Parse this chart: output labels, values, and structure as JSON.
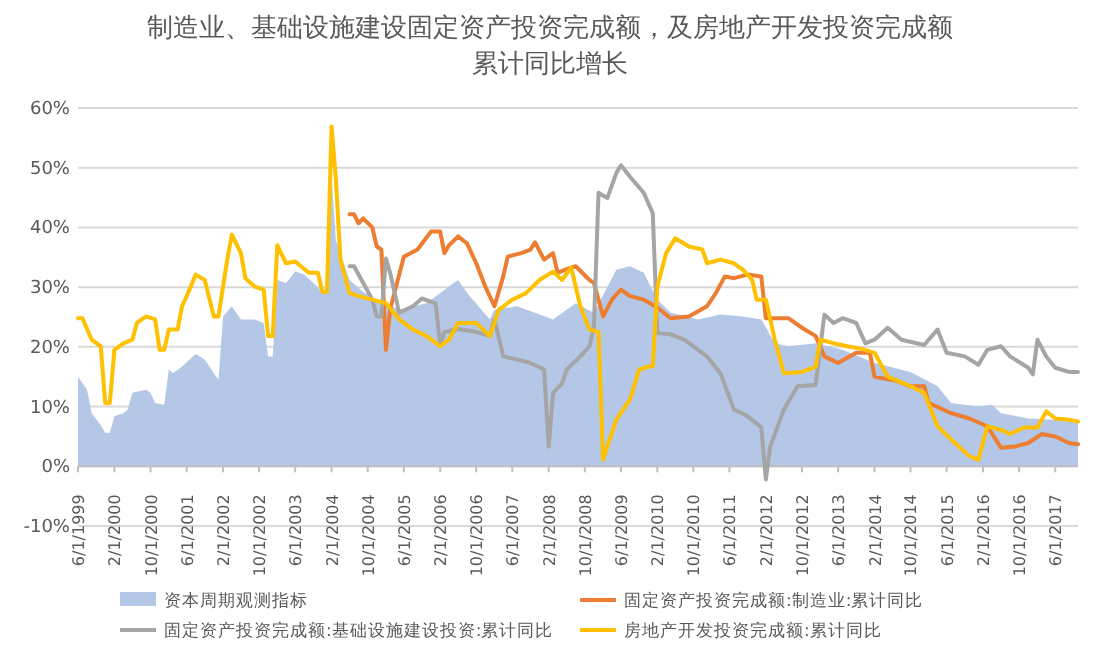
{
  "chart_data": {
    "type": "line",
    "title": "制造业、基础设施建设固定资产投资完成额，及房地产开发投资完成额",
    "subtitle": "累计同比增长",
    "xlim": [
      "1999-06",
      "2017-11"
    ],
    "xticks": [
      {
        "value": "1999-06-01",
        "label": "6/1/1999"
      },
      {
        "value": "2000-02-01",
        "label": "2/1/2000"
      },
      {
        "value": "2000-10-01",
        "label": "10/1/2000"
      },
      {
        "value": "2001-06-01",
        "label": "6/1/2001"
      },
      {
        "value": "2002-02-01",
        "label": "2/1/2002"
      },
      {
        "value": "2002-10-01",
        "label": "10/1/2002"
      },
      {
        "value": "2003-06-01",
        "label": "6/1/2003"
      },
      {
        "value": "2004-02-01",
        "label": "2/1/2004"
      },
      {
        "value": "2004-10-01",
        "label": "10/1/2004"
      },
      {
        "value": "2005-06-01",
        "label": "6/1/2005"
      },
      {
        "value": "2006-02-01",
        "label": "2/1/2006"
      },
      {
        "value": "2006-10-01",
        "label": "10/1/2006"
      },
      {
        "value": "2007-06-01",
        "label": "6/1/2007"
      },
      {
        "value": "2008-02-01",
        "label": "2/1/2008"
      },
      {
        "value": "2008-10-01",
        "label": "10/1/2008"
      },
      {
        "value": "2009-06-01",
        "label": "6/1/2009"
      },
      {
        "value": "2010-02-01",
        "label": "2/1/2010"
      },
      {
        "value": "2010-10-01",
        "label": "10/1/2010"
      },
      {
        "value": "2011-06-01",
        "label": "6/1/2011"
      },
      {
        "value": "2012-02-01",
        "label": "2/1/2012"
      },
      {
        "value": "2012-10-01",
        "label": "10/1/2012"
      },
      {
        "value": "2013-06-01",
        "label": "6/1/2013"
      },
      {
        "value": "2014-02-01",
        "label": "2/1/2014"
      },
      {
        "value": "2014-10-01",
        "label": "10/1/2014"
      },
      {
        "value": "2015-06-01",
        "label": "6/1/2015"
      },
      {
        "value": "2016-02-01",
        "label": "2/1/2016"
      },
      {
        "value": "2016-10-01",
        "label": "10/1/2016"
      },
      {
        "value": "2017-06-01",
        "label": "6/1/2017"
      }
    ],
    "ylim": [
      -10,
      60
    ],
    "yticks": [
      {
        "value": -10,
        "label": "-10%"
      },
      {
        "value": 0,
        "label": "0%"
      },
      {
        "value": 10,
        "label": "10%"
      },
      {
        "value": 20,
        "label": "20%"
      },
      {
        "value": 30,
        "label": "30%"
      },
      {
        "value": 40,
        "label": "40%"
      },
      {
        "value": 50,
        "label": "50%"
      },
      {
        "value": 60,
        "label": "60%"
      }
    ],
    "grid": "y",
    "legend": "bottom",
    "series": [
      {
        "name": "资本周期观测指标",
        "type": "area",
        "color": "#b4c7e7",
        "x": [
          "1999-06",
          "1999-08",
          "1999-09",
          "1999-11",
          "1999-12",
          "2000-01",
          "2000-02",
          "2000-04",
          "2000-05",
          "2000-06",
          "2000-09",
          "2000-10",
          "2000-11",
          "2001-01",
          "2001-02",
          "2001-03",
          "2001-05",
          "2001-08",
          "2001-10",
          "2001-12",
          "2002-01",
          "2002-02",
          "2002-04",
          "2002-06",
          "2002-09",
          "2002-11",
          "2002-12",
          "2003-01",
          "2003-02",
          "2003-04",
          "2003-06",
          "2003-08",
          "2003-10",
          "2003-12",
          "2004-01",
          "2004-02",
          "2004-03",
          "2004-06",
          "2004-09",
          "2004-12",
          "2005-05",
          "2005-11",
          "2006-04",
          "2006-06",
          "2006-08",
          "2007-01",
          "2007-02",
          "2007-07",
          "2007-11",
          "2008-03",
          "2008-08",
          "2008-12",
          "2009-05",
          "2009-08",
          "2009-11",
          "2010-02",
          "2010-05",
          "2010-11",
          "2011-04",
          "2011-09",
          "2012-01",
          "2012-04",
          "2012-07",
          "2013-01",
          "2013-07",
          "2014-02",
          "2014-10",
          "2015-04",
          "2015-07",
          "2016-01",
          "2016-04",
          "2016-06",
          "2016-12",
          "2017-06",
          "2017-11"
        ],
        "values": [
          15,
          12.8,
          8.9,
          6.9,
          5.6,
          5.6,
          8.4,
          8.9,
          9.5,
          12.3,
          12.8,
          12.3,
          10.6,
          10.3,
          16.2,
          15.6,
          16.7,
          18.8,
          17.9,
          15.6,
          14.5,
          25.1,
          26.8,
          24.6,
          24.6,
          24,
          18.4,
          18.4,
          31.2,
          30.7,
          32.6,
          32.1,
          30.7,
          29.2,
          29,
          48.5,
          37.9,
          31.2,
          29.2,
          27.9,
          26.2,
          27.3,
          30.1,
          31.2,
          29,
          24.6,
          26.2,
          26.8,
          25.7,
          24.6,
          27.3,
          25.7,
          32.9,
          33.5,
          32.4,
          27.9,
          25.7,
          24.6,
          25.4,
          25.1,
          24.6,
          20.6,
          20.1,
          20.6,
          19.5,
          17.3,
          15.8,
          13.4,
          10.6,
          10,
          10.3,
          8.9,
          8,
          7.8,
          7.6
        ]
      },
      {
        "name": "固定资产投资完成额:制造业:累计同比",
        "color": "#ed7d31",
        "x": [
          "2004-06",
          "2004-07",
          "2004-08",
          "2004-09",
          "2004-11",
          "2004-12",
          "2005-01",
          "2005-02",
          "2005-03",
          "2005-06",
          "2005-09",
          "2005-12",
          "2006-02",
          "2006-03",
          "2006-04",
          "2006-06",
          "2006-08",
          "2006-10",
          "2006-12",
          "2007-02",
          "2007-04",
          "2007-05",
          "2007-08",
          "2007-10",
          "2007-11",
          "2008-01",
          "2008-03",
          "2008-04",
          "2008-06",
          "2008-08",
          "2008-11",
          "2008-12",
          "2009-02",
          "2009-04",
          "2009-06",
          "2009-08",
          "2009-11",
          "2010-02",
          "2010-05",
          "2010-09",
          "2011-01",
          "2011-03",
          "2011-05",
          "2011-07",
          "2011-10",
          "2012-01",
          "2012-02",
          "2012-07",
          "2012-10",
          "2013-01",
          "2013-03",
          "2013-06",
          "2013-10",
          "2014-01",
          "2014-02",
          "2014-07",
          "2014-10",
          "2015-01",
          "2015-02",
          "2015-07",
          "2015-11",
          "2016-03",
          "2016-06",
          "2016-09",
          "2016-12",
          "2017-03",
          "2017-06",
          "2017-09",
          "2017-11"
        ],
        "values": [
          42.2,
          42.2,
          40.7,
          41.5,
          40,
          36.8,
          36.3,
          19.5,
          26.2,
          35.1,
          36.3,
          39.3,
          39.3,
          35.7,
          37,
          38.5,
          37.3,
          34,
          30.1,
          26.8,
          31.8,
          35.1,
          35.7,
          36.3,
          37.5,
          34.6,
          35.7,
          32.4,
          33,
          33.5,
          31.2,
          30.7,
          25.1,
          27.9,
          29.6,
          28.5,
          27.9,
          26.6,
          24.8,
          25.1,
          26.8,
          29,
          31.8,
          31.5,
          32.1,
          31.8,
          24.8,
          24.8,
          23.2,
          21.8,
          18.4,
          17.3,
          19,
          19,
          15,
          14.3,
          13.4,
          13.4,
          10.6,
          8.9,
          8,
          6.7,
          3.1,
          3.3,
          3.9,
          5.4,
          5,
          3.9,
          3.7
        ]
      },
      {
        "name": "固定资产投资完成额:基础设施建设投资:累计同比",
        "color": "#a5a5a5",
        "x": [
          "2004-06",
          "2004-07",
          "2004-09",
          "2004-11",
          "2004-12",
          "2005-01",
          "2005-02",
          "2005-03",
          "2005-05",
          "2005-08",
          "2005-10",
          "2006-01",
          "2006-02",
          "2006-03",
          "2006-06",
          "2006-10",
          "2007-01",
          "2007-02",
          "2007-04",
          "2007-07",
          "2007-10",
          "2008-01",
          "2008-02",
          "2008-03",
          "2008-05",
          "2008-06",
          "2008-09",
          "2008-11",
          "2008-12",
          "2009-01",
          "2009-03",
          "2009-05",
          "2009-06",
          "2009-08",
          "2009-11",
          "2010-01",
          "2010-02",
          "2010-05",
          "2010-08",
          "2010-11",
          "2011-01",
          "2011-04",
          "2011-07",
          "2011-10",
          "2012-01",
          "2012-02",
          "2012-03",
          "2012-06",
          "2012-09",
          "2013-01",
          "2013-03",
          "2013-05",
          "2013-07",
          "2013-10",
          "2013-12",
          "2014-02",
          "2014-05",
          "2014-08",
          "2015-01",
          "2015-04",
          "2015-06",
          "2015-10",
          "2016-01",
          "2016-03",
          "2016-06",
          "2016-08",
          "2016-12",
          "2017-01",
          "2017-02",
          "2017-04",
          "2017-06",
          "2017-09",
          "2017-11"
        ],
        "values": [
          33.5,
          33.5,
          30.7,
          27.9,
          25.1,
          25.1,
          34.8,
          32.4,
          25.7,
          26.8,
          28.1,
          27.3,
          20.3,
          22.5,
          23,
          22.5,
          21.8,
          24.6,
          18.4,
          17.9,
          17.3,
          16.2,
          3.3,
          12.3,
          13.9,
          16.2,
          18.4,
          20.1,
          23.4,
          45.8,
          44.9,
          49.1,
          50.4,
          48.5,
          45.8,
          42.4,
          22.3,
          22.1,
          21.2,
          19.5,
          18.4,
          15.6,
          9.5,
          8.4,
          6.5,
          -2.2,
          3.3,
          9.5,
          13.4,
          13.6,
          25.4,
          24,
          24.8,
          24,
          20.6,
          21.2,
          23.2,
          21.2,
          20.3,
          22.9,
          19,
          18.4,
          17,
          19.5,
          20.1,
          18.4,
          16.5,
          15.4,
          21.2,
          18.4,
          16.5,
          15.8,
          15.8
        ]
      },
      {
        "name": "房地产开发投资完成额:累计同比",
        "color": "#ffc000",
        "x": [
          "1999-06",
          "1999-07",
          "1999-09",
          "1999-11",
          "1999-12",
          "2000-01",
          "2000-02",
          "2000-04",
          "2000-06",
          "2000-07",
          "2000-09",
          "2000-11",
          "2000-12",
          "2001-01",
          "2001-02",
          "2001-04",
          "2001-05",
          "2001-06",
          "2001-08",
          "2001-10",
          "2001-12",
          "2002-01",
          "2002-03",
          "2002-04",
          "2002-06",
          "2002-07",
          "2002-09",
          "2002-11",
          "2002-12",
          "2003-01",
          "2003-02",
          "2003-04",
          "2003-06",
          "2003-09",
          "2003-11",
          "2003-12",
          "2004-01",
          "2004-02",
          "2004-03",
          "2004-04",
          "2004-06",
          "2004-08",
          "2004-11",
          "2005-02",
          "2005-05",
          "2005-08",
          "2005-11",
          "2006-02",
          "2006-04",
          "2006-06",
          "2006-10",
          "2007-01",
          "2007-03",
          "2007-06",
          "2007-09",
          "2007-12",
          "2008-03",
          "2008-05",
          "2008-07",
          "2008-09",
          "2008-11",
          "2009-01",
          "2009-02",
          "2009-03",
          "2009-05",
          "2009-08",
          "2009-10",
          "2009-12",
          "2010-01",
          "2010-02",
          "2010-04",
          "2010-06",
          "2010-09",
          "2010-12",
          "2011-01",
          "2011-04",
          "2011-07",
          "2011-09",
          "2011-11",
          "2011-12",
          "2012-02",
          "2012-04",
          "2012-06",
          "2012-10",
          "2013-01",
          "2013-02",
          "2013-05",
          "2013-08",
          "2013-11",
          "2014-02",
          "2014-05",
          "2014-10",
          "2015-01",
          "2015-04",
          "2015-07",
          "2015-11",
          "2016-01",
          "2016-03",
          "2016-06",
          "2016-08",
          "2016-11",
          "2017-02",
          "2017-04",
          "2017-06",
          "2017-09",
          "2017-11"
        ],
        "values": [
          24.8,
          24.8,
          21.2,
          20.1,
          10.6,
          10.6,
          19.5,
          20.6,
          21.2,
          24,
          25.1,
          24.6,
          19.5,
          19.5,
          22.9,
          22.9,
          26.8,
          28.5,
          32.1,
          31.2,
          25.1,
          25.1,
          34.6,
          38.8,
          35.7,
          31.5,
          30.1,
          29.6,
          21.8,
          21.8,
          37,
          34,
          34.3,
          32.4,
          32.4,
          29.2,
          29.2,
          56.9,
          48,
          34.6,
          29,
          28.5,
          27.9,
          27.3,
          24.6,
          22.9,
          21.8,
          20.1,
          21.2,
          24,
          24,
          21.8,
          26.2,
          27.9,
          29,
          31.2,
          32.6,
          31.2,
          33.3,
          26.8,
          22.9,
          22.5,
          1.1,
          3.3,
          7.8,
          11.2,
          16.2,
          16.7,
          16.7,
          30.1,
          35.7,
          38.2,
          36.8,
          36.3,
          34,
          34.6,
          34,
          32.9,
          31.2,
          27.9,
          27.9,
          21.2,
          15.6,
          15.8,
          16.7,
          21.2,
          20.6,
          20.1,
          19.7,
          19,
          15,
          13.4,
          12.3,
          6.7,
          4.5,
          1.7,
          1.1,
          6.7,
          6.1,
          5.4,
          6.5,
          6.5,
          9.2,
          8,
          7.8,
          7.5
        ]
      }
    ]
  }
}
